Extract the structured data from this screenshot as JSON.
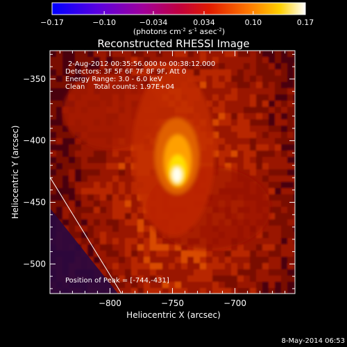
{
  "chart_data": {
    "type": "heatmap",
    "title": "Reconstructed RHESSI Image",
    "xlabel": "Heliocentric X (arcsec)",
    "ylabel": "Heliocentric Y (arcsec)",
    "xlim": [
      -848,
      -652
    ],
    "ylim": [
      -524,
      -327
    ],
    "xticks": [
      -800,
      -750,
      -700
    ],
    "yticks": [
      -350,
      -400,
      -450,
      -500
    ],
    "grid": false,
    "colorbar": {
      "ticks": [
        "-0.17",
        "-0.10",
        "-0.034",
        "0.034",
        "0.10",
        "0.17"
      ],
      "range": [
        -0.17,
        0.17
      ],
      "unit_label_parts": [
        "(photons cm",
        "-2",
        " s",
        "-1",
        " asec",
        "-2",
        ")"
      ]
    },
    "info_lines": [
      "2-Aug-2012 00:35:56.000 to 00:38:12.000",
      "Detectors: 3F 5F 6F 7F 8F 9F, Att 0",
      "Energy Range: 3.0 - 6.0 keV",
      "Clean    Total counts: 1.97E+04"
    ],
    "peak_label": "Position of Peak = [-744,-431]",
    "peak": {
      "x": -744,
      "y": -431
    },
    "limb_line": [
      [
        -849,
        -428
      ],
      [
        -789,
        -527
      ]
    ],
    "footer_date": "8-May-2014 06:53"
  }
}
